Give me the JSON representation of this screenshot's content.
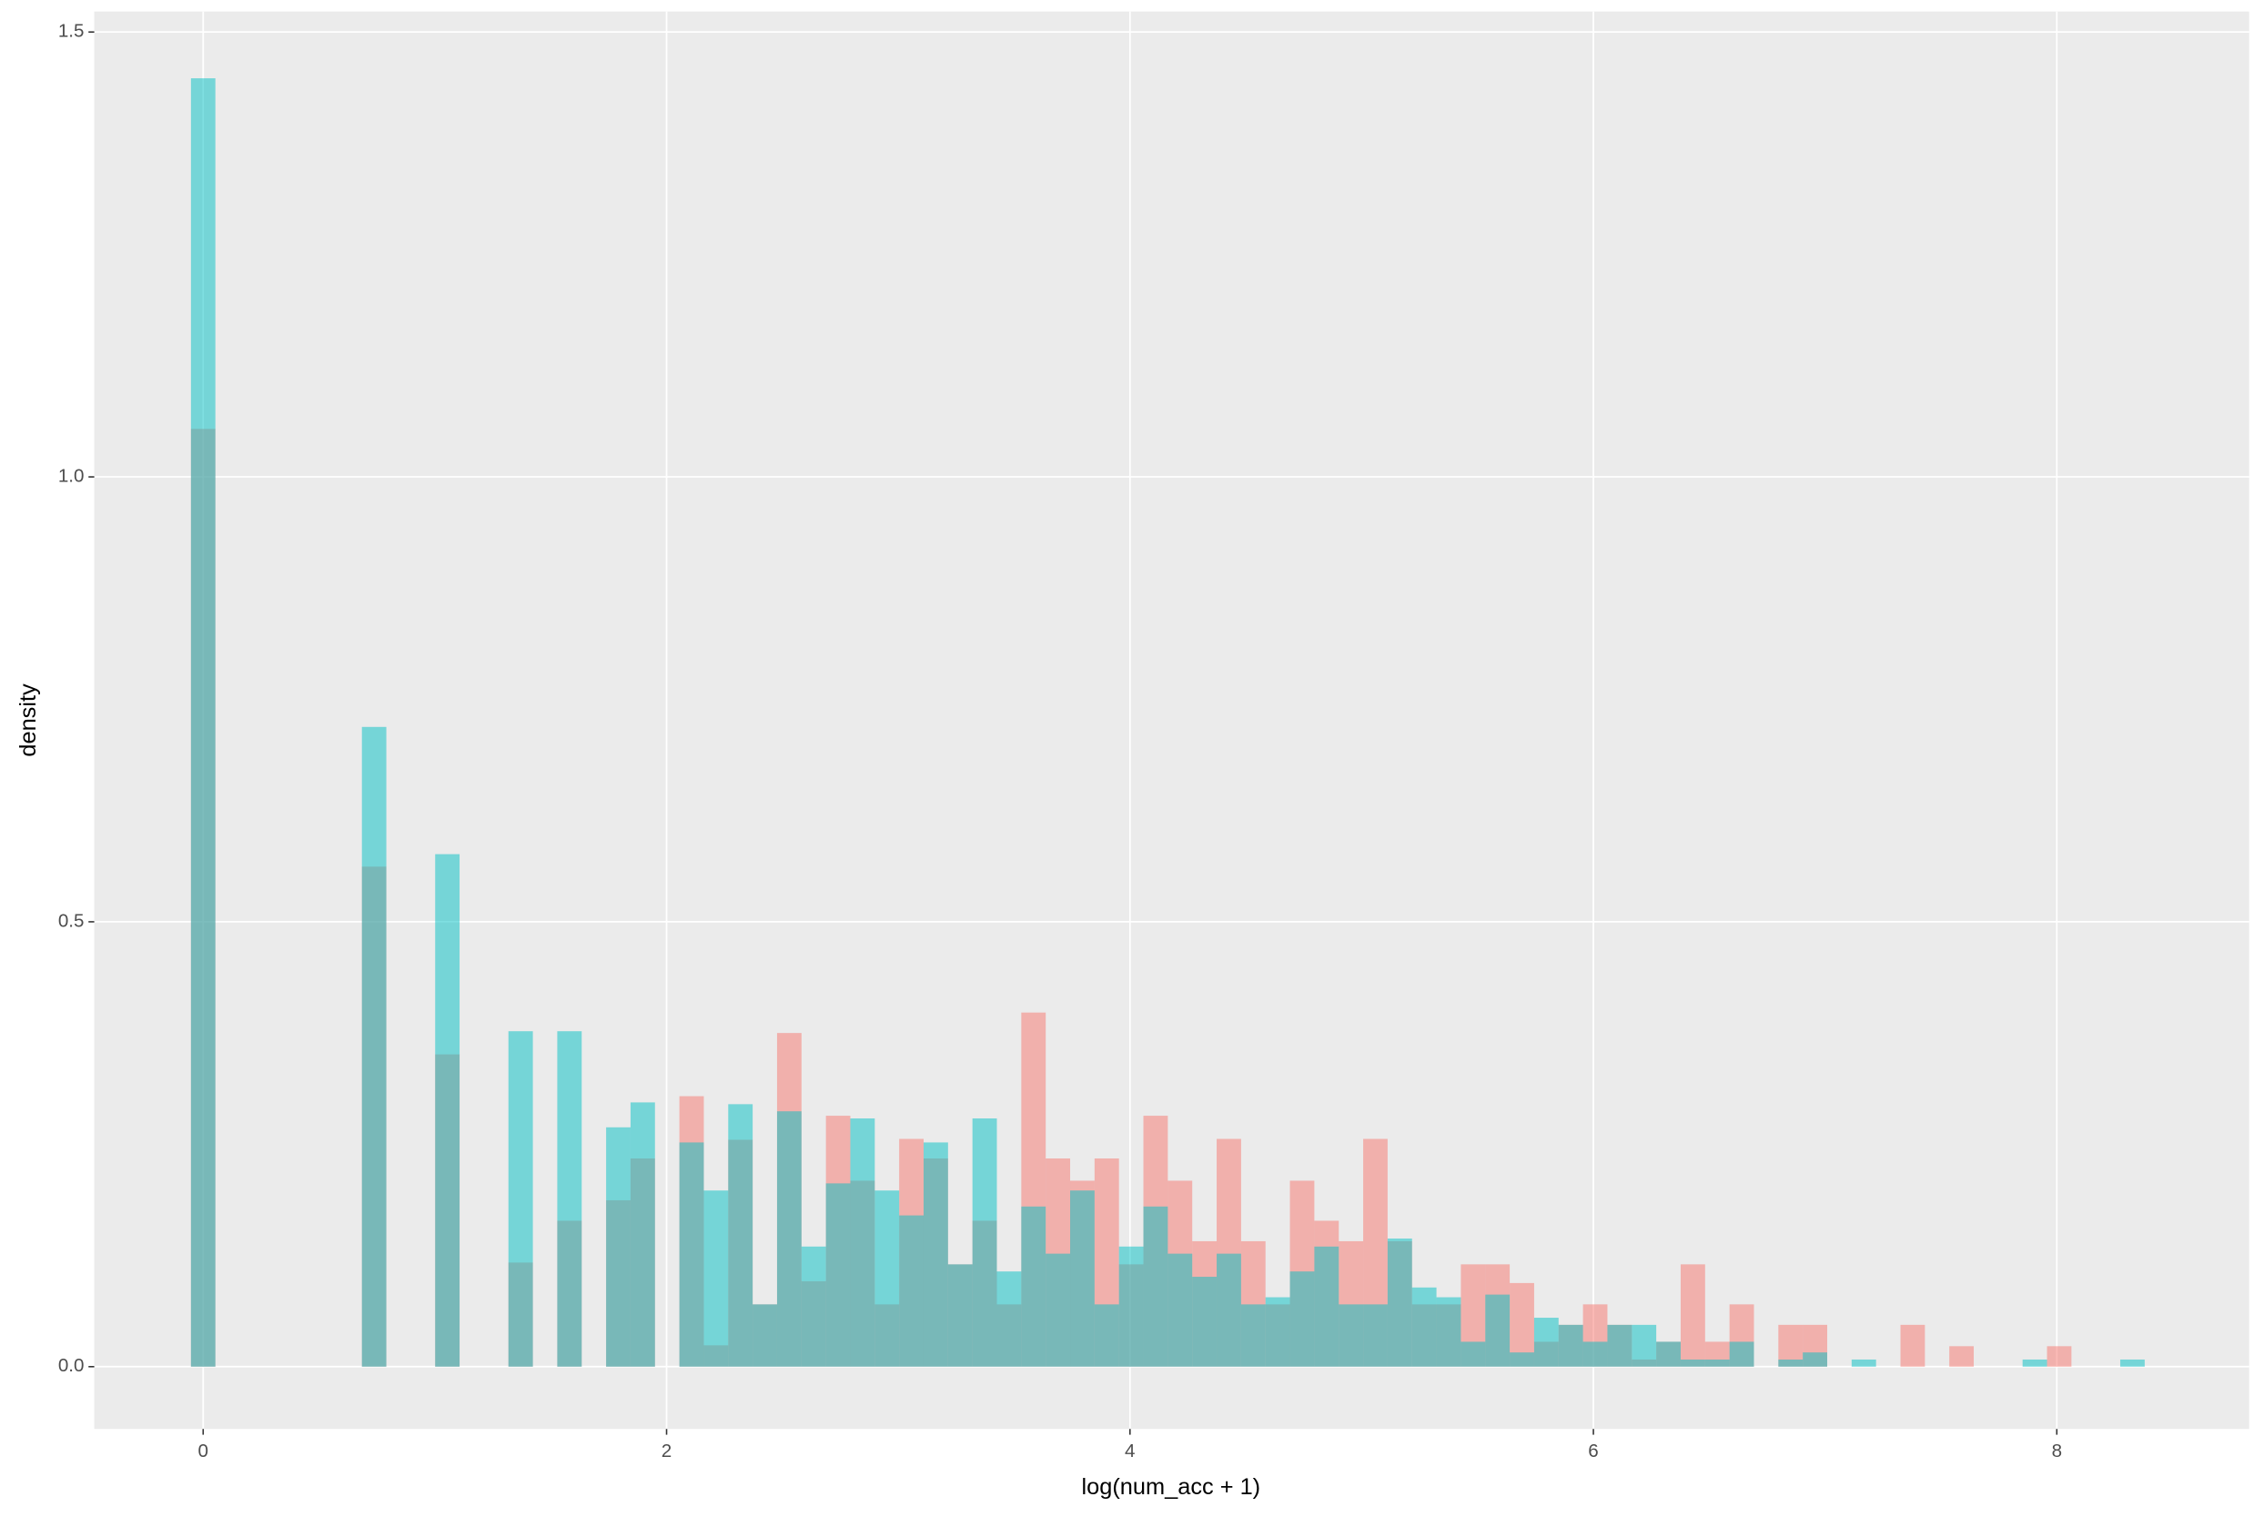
{
  "chart_data": {
    "type": "histogram",
    "x_label": "log(num_acc + 1)",
    "y_label": "density",
    "bins": [
      -0.0527,
      0.0527,
      0.1581,
      0.2635,
      0.3689,
      0.4743,
      0.5797,
      0.6851,
      0.7905,
      0.8959,
      1.0013,
      1.1067,
      1.2121,
      1.3175,
      1.4229,
      1.5283,
      1.6337,
      1.7391,
      1.8445,
      1.9499,
      2.0553,
      2.1607,
      2.2661,
      2.3715,
      2.4769,
      2.5823,
      2.6877,
      2.7931,
      2.8985,
      3.0039,
      3.1093,
      3.2147,
      3.3201,
      3.4255,
      3.5309,
      3.6363,
      3.7417,
      3.8471,
      3.9525,
      4.0579,
      4.1633,
      4.2687,
      4.3741,
      4.4795,
      4.5849,
      4.6903,
      4.7957,
      4.9011,
      5.0065,
      5.1119,
      5.2173,
      5.3227,
      5.4281,
      5.5335,
      5.6389,
      5.7443,
      5.8497,
      5.9551,
      6.0605,
      6.1659,
      6.2713,
      6.3767,
      6.4821,
      6.5875,
      6.6929,
      6.7983,
      6.9037,
      7.0091,
      7.1145,
      7.2199,
      7.3253,
      7.4307,
      7.5361,
      7.6415,
      7.7469,
      7.8523,
      7.9577,
      8.0631,
      8.1685,
      8.2739,
      8.3793
    ],
    "series": [
      {
        "color": "#F8766D",
        "values": [
          1.054,
          0,
          0,
          0,
          0,
          0,
          0,
          0.562,
          0,
          0,
          0.351,
          0,
          0,
          0.117,
          0,
          0.164,
          0,
          0.187,
          0.234,
          0,
          0.304,
          0.024,
          0.255,
          0.07,
          0.375,
          0.096,
          0.282,
          0.209,
          0.07,
          0.256,
          0.234,
          0.115,
          0.164,
          0.07,
          0.398,
          0.234,
          0.209,
          0.234,
          0.115,
          0.282,
          0.209,
          0.141,
          0.256,
          0.141,
          0.07,
          0.209,
          0.164,
          0.141,
          0.256,
          0.141,
          0.07,
          0.07,
          0.115,
          0.115,
          0.094,
          0.028,
          0.047,
          0.07,
          0.047,
          0.008,
          0.028,
          0.115,
          0.028,
          0.07,
          0,
          0.047,
          0.047,
          0,
          0,
          0,
          0.047,
          0,
          0.023,
          0,
          0,
          0,
          0.023,
          0,
          0,
          0
        ]
      },
      {
        "color": "#00BFC4",
        "values": [
          1.448,
          0,
          0,
          0,
          0,
          0,
          0,
          0.719,
          0,
          0,
          0.576,
          0,
          0,
          0.377,
          0,
          0.377,
          0,
          0.269,
          0.297,
          0,
          0.252,
          0.198,
          0.295,
          0.07,
          0.287,
          0.135,
          0.206,
          0.279,
          0.198,
          0.17,
          0.252,
          0.115,
          0.279,
          0.107,
          0.18,
          0.127,
          0.198,
          0.07,
          0.135,
          0.18,
          0.127,
          0.101,
          0.127,
          0.07,
          0.078,
          0.107,
          0.135,
          0.07,
          0.07,
          0.144,
          0.089,
          0.078,
          0.028,
          0.081,
          0.016,
          0.055,
          0.047,
          0.028,
          0.047,
          0.047,
          0.028,
          0.008,
          0.008,
          0.028,
          0,
          0.008,
          0.016,
          0,
          0.008,
          0,
          0,
          0,
          0,
          0,
          0,
          0.008,
          0,
          0,
          0,
          0.008
        ]
      }
    ],
    "alpha": 0.5,
    "xlim": [
      -0.47,
      8.83
    ],
    "ylim": [
      -0.07,
      1.523
    ],
    "xticks": [
      0,
      2,
      4,
      6,
      8
    ],
    "yticks": [
      {
        "value": 0,
        "label": "0.0"
      },
      {
        "value": 0.5,
        "label": "0.5"
      },
      {
        "value": 1,
        "label": "1.0"
      },
      {
        "value": 1.5,
        "label": "1.5"
      }
    ],
    "grid": true,
    "panel_color": "#EBEBEB"
  }
}
